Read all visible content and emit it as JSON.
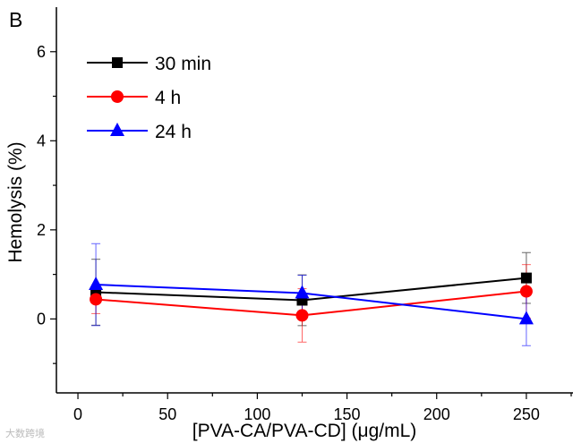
{
  "panel_label": "B",
  "watermark": "大数跨境",
  "chart_data": {
    "type": "line",
    "title": "",
    "xlabel": "[PVA-CA/PVA-CD] (μg/mL)",
    "ylabel": "Hemolysis (%)",
    "xlim": [
      -12,
      276
    ],
    "ylim": [
      -1.66,
      7
    ],
    "xticks": [
      0,
      50,
      100,
      150,
      200,
      250
    ],
    "yticks": [
      0,
      2,
      4,
      6
    ],
    "grid": false,
    "legend_position": "top-left",
    "x": [
      10,
      125,
      250
    ],
    "series": [
      {
        "name": "30 min",
        "color": "#000000",
        "marker": "square",
        "values": [
          0.6,
          0.42,
          0.92
        ],
        "errors": [
          0.74,
          0.57,
          0.57
        ]
      },
      {
        "name": "4 h",
        "color": "#ff0000",
        "marker": "circle",
        "values": [
          0.44,
          0.08,
          0.62
        ],
        "errors": [
          0.32,
          0.6,
          0.6
        ]
      },
      {
        "name": "24 h",
        "color": "#0000ff",
        "marker": "triangle",
        "values": [
          0.77,
          0.58,
          0.0
        ],
        "errors": [
          0.92,
          0.4,
          0.6
        ]
      }
    ]
  }
}
